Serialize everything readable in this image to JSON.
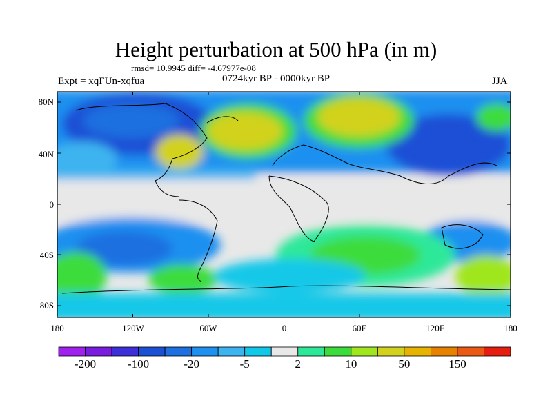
{
  "title": "Height perturbation at 500 hPa (in m)",
  "stats": "rmsd= 10.9945 diff= -4.67977e-08",
  "left_label": "Expt = xqFUn-xqfua",
  "center_label": "0724kyr BP - 0000kyr BP",
  "right_label": "JJA",
  "lat_ticks": [
    "80N",
    "40N",
    "0",
    "40S",
    "80S"
  ],
  "lon_ticks": [
    "180",
    "120W",
    "60W",
    "0",
    "60E",
    "120E",
    "180"
  ],
  "colorbar": {
    "colors": [
      "#a020f0",
      "#7a1ce0",
      "#3c2ed8",
      "#1a4fd6",
      "#1e70e0",
      "#1e90f0",
      "#3cb4f0",
      "#12c8e8",
      "#e8e8e8",
      "#2ee89a",
      "#3cdc3c",
      "#a0e61e",
      "#d2d21e",
      "#e6b400",
      "#e68200",
      "#ea5a14",
      "#e61e10"
    ],
    "labels": [
      {
        "text": "-200",
        "index": 1
      },
      {
        "text": "-100",
        "index": 3
      },
      {
        "text": "-20",
        "index": 5
      },
      {
        "text": "-5",
        "index": 7
      },
      {
        "text": "2",
        "index": 9
      },
      {
        "text": "10",
        "index": 11
      },
      {
        "text": "50",
        "index": 13
      },
      {
        "text": "150",
        "index": 15
      }
    ]
  }
}
